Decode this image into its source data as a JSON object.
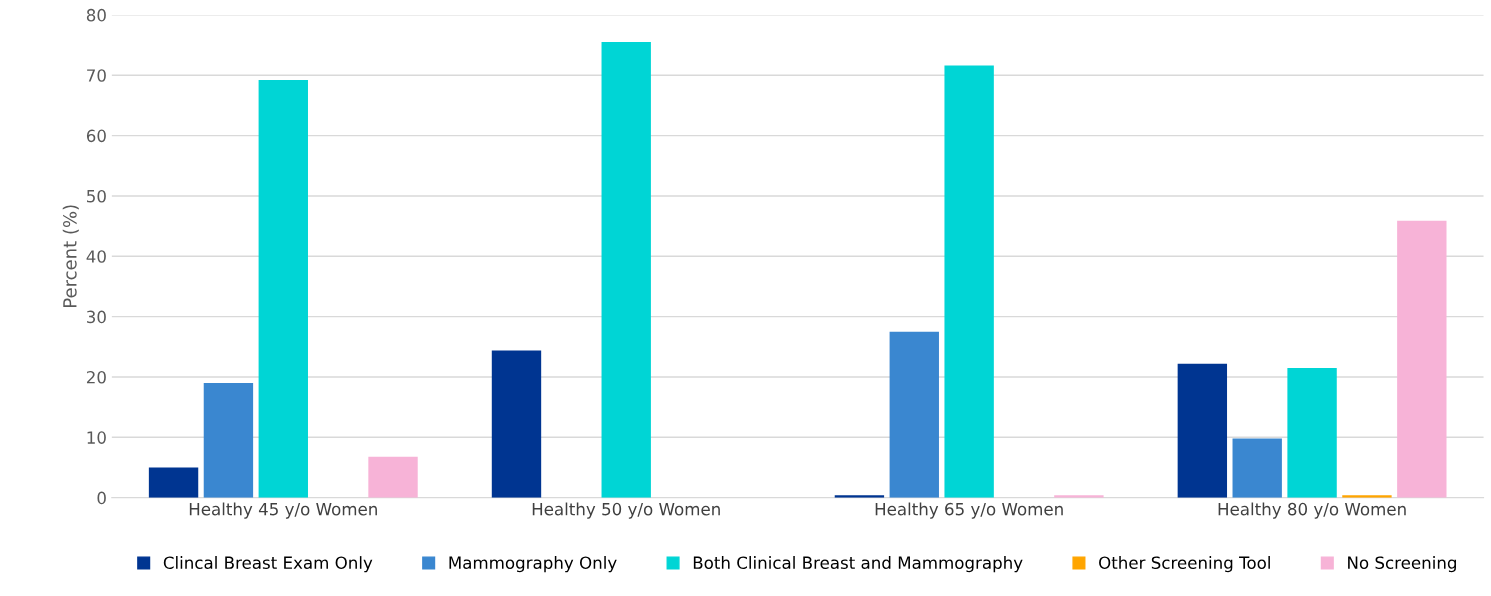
{
  "chart_data": {
    "type": "bar",
    "ylabel": "Percent (%)",
    "categories": [
      "Healthy 45 y/o Women",
      "Healthy 50 y/o Women",
      "Healthy 65 y/o Women",
      "Healthy 80 y/o Women"
    ],
    "series": [
      {
        "name": "Clincal Breast Exam Only",
        "color": "#003591",
        "values": [
          5.0,
          24.4,
          0.4,
          22.2
        ]
      },
      {
        "name": "Mammography Only",
        "color": "#3a87d0",
        "values": [
          19.0,
          0,
          27.5,
          9.8
        ]
      },
      {
        "name": "Both Clinical Breast and Mammography",
        "color": "#00d5d5",
        "values": [
          69.2,
          75.5,
          71.6,
          21.5
        ]
      },
      {
        "name": "Other Screening Tool",
        "color": "#ffa500",
        "values": [
          0,
          0,
          0,
          0.4
        ]
      },
      {
        "name": "No Screening",
        "color": "#f7b3d7",
        "values": [
          6.8,
          0,
          0.4,
          45.9
        ]
      }
    ],
    "ylim": [
      0,
      80
    ],
    "yticks": [
      0,
      10,
      20,
      30,
      40,
      50,
      60,
      70,
      80
    ],
    "grid": "y",
    "legend": "bottom"
  }
}
